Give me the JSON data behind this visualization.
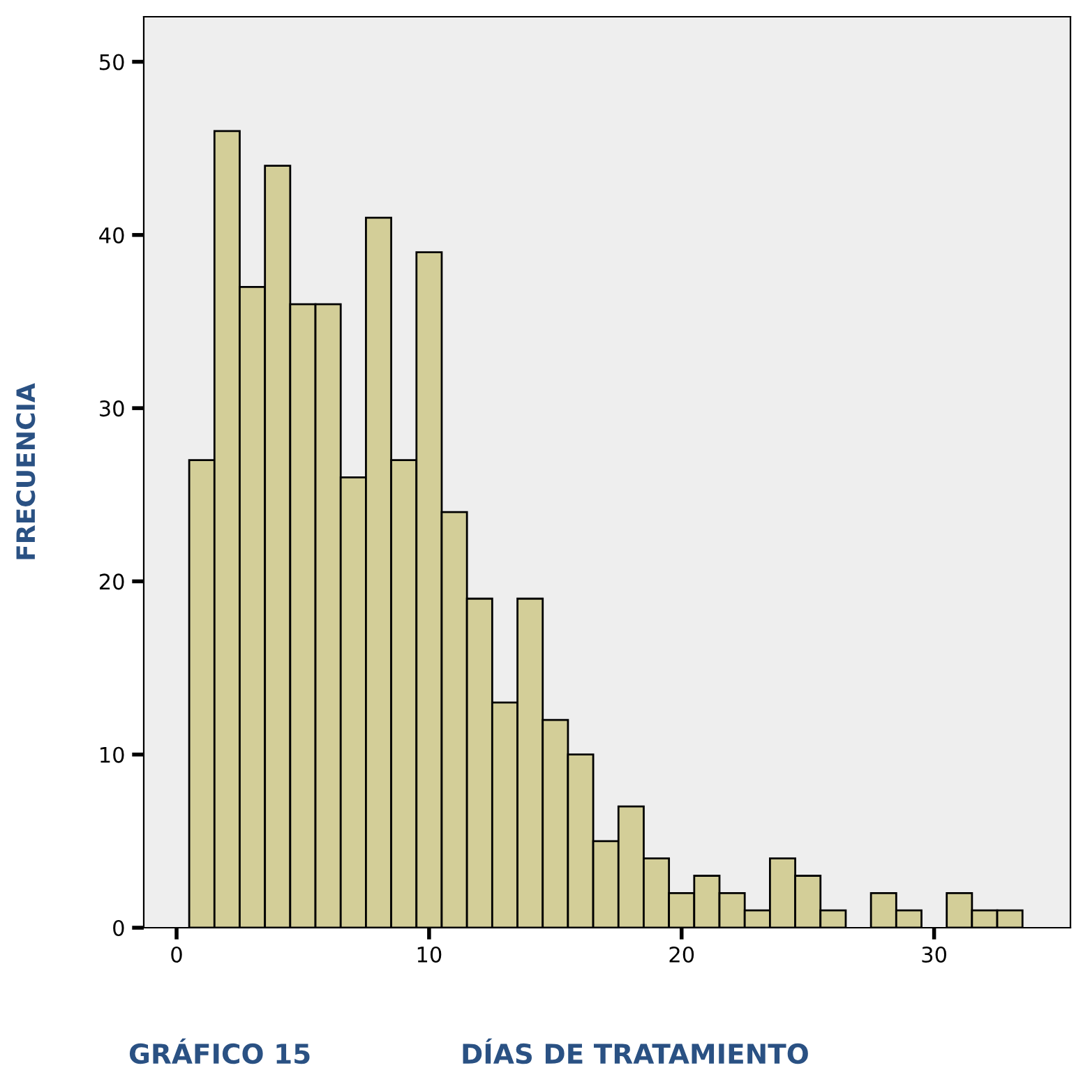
{
  "chart_data": {
    "type": "histogram",
    "xlabel": "DÍAS DE TRATAMIENTO",
    "ylabel": "FRECUENCIA",
    "annotations": [
      "GRÁFICO 15"
    ],
    "bins": [
      0.5,
      1.5,
      2.5,
      3.5,
      4.5,
      5.5,
      6.5,
      7.5,
      8.5,
      9.5,
      10.5,
      11.5,
      12.5,
      13.5,
      14.5,
      15.5,
      16.5,
      17.5,
      18.5,
      19.5,
      20.5,
      21.5,
      22.5,
      23.5,
      24.5,
      25.5,
      26.5,
      27.5,
      28.5,
      29.5,
      30.5,
      31.5,
      32.5,
      33.5
    ],
    "values": [
      27,
      46,
      37,
      44,
      36,
      36,
      26,
      41,
      27,
      39,
      24,
      19,
      13,
      19,
      12,
      10,
      5,
      7,
      4,
      2,
      3,
      2,
      1,
      4,
      3,
      1,
      0,
      2,
      1,
      0,
      2,
      1,
      1
    ],
    "color": "#d3ce98",
    "xlim": [
      -1.3,
      35.4
    ],
    "xticks": [
      0,
      10,
      20,
      30
    ],
    "ylim": [
      0,
      52.6
    ],
    "yticks": [
      0,
      10,
      20,
      30,
      40,
      50
    ],
    "grid": false,
    "legend": false
  }
}
